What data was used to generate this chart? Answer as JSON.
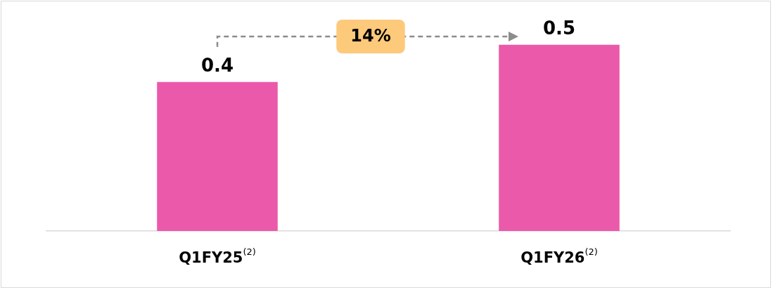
{
  "chart_data": {
    "type": "bar",
    "categories": [
      "Q1FY25$^{(2)}$",
      "Q1FY26$^{(2)}$"
    ],
    "values": [
      0.4,
      0.5
    ],
    "color": "#eb5aaa",
    "ylim": [
      0,
      0.62
    ],
    "data_labels": true,
    "relative": false,
    "annotations": [
      "14%"
    ],
    "grid": false,
    "legend": false
  }
}
